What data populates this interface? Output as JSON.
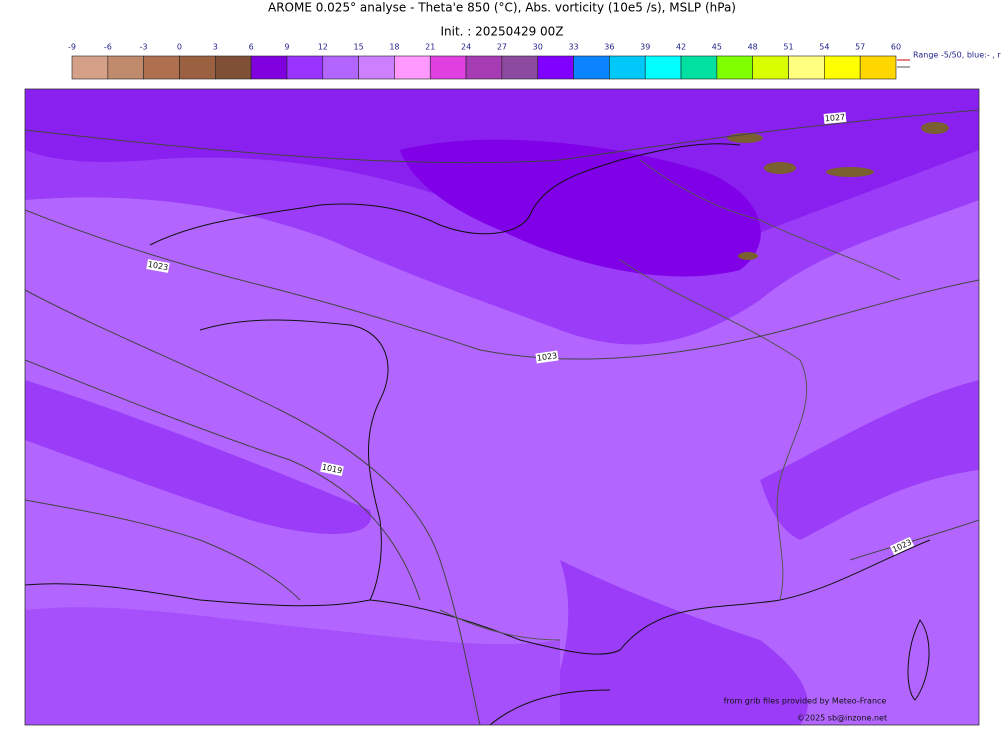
{
  "header": {
    "title": "AROME 0.025° analyse - Theta'e 850 (°C), Abs. vorticity (10e5 /s), MSLP (hPa)",
    "init": "Init. : 20250429 00Z"
  },
  "colorbar": {
    "ticks": [
      -9,
      -6,
      -3,
      0,
      3,
      6,
      9,
      12,
      15,
      18,
      21,
      24,
      27,
      30,
      33,
      36,
      39,
      42,
      45,
      48,
      51,
      54,
      57,
      60
    ],
    "colors": [
      "#d4a088",
      "#c08a6c",
      "#b07050",
      "#9a6040",
      "#805036",
      "#8000e0",
      "#9933ff",
      "#b266ff",
      "#cc80ff",
      "#ff99ff",
      "#e040e0",
      "#a63cb4",
      "#8c4aa0",
      "#8000ff",
      "#0a84ff",
      "#00c8f8",
      "#00ffff",
      "#00e0a0",
      "#80ff00",
      "#d8ff00",
      "#ffff80",
      "#ffff00",
      "#ffd700"
    ],
    "note": "Range -5/50, blue:- , r"
  },
  "map": {
    "isobar_labels": [
      "1027",
      "1023",
      "1023",
      "1019",
      "1023"
    ],
    "credit": "from grib files provided by Meteo-France",
    "copyright": "©2025 sb@inzone.net"
  }
}
